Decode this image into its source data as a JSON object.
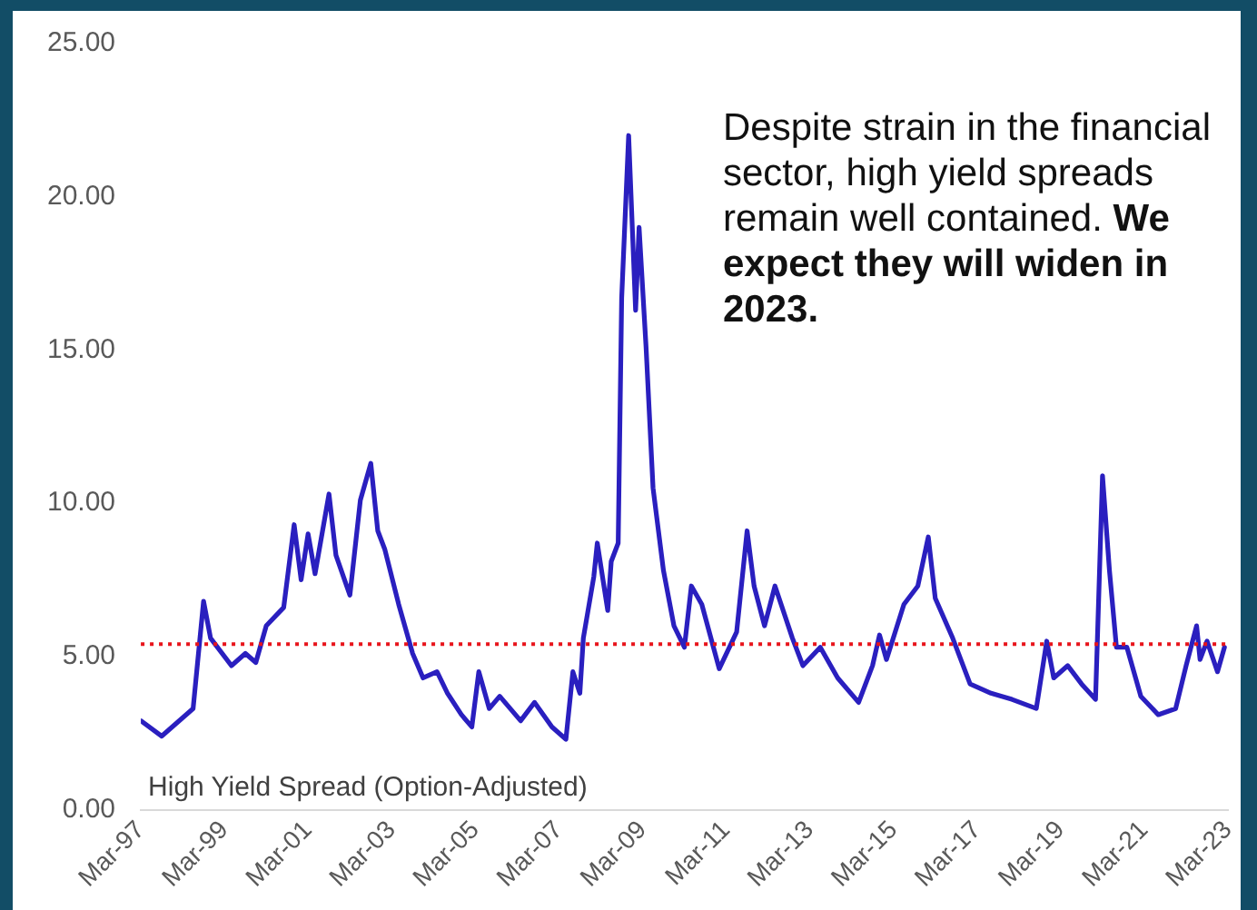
{
  "chart_data": {
    "type": "line",
    "annotations": [
      "Despite strain in the financial sector, high yield spreads remain well contained.",
      "We expect they will widen in 2023."
    ],
    "x": [
      "1997-03",
      "1997-09",
      "1998-06",
      "1998-09",
      "1998-11",
      "1999-05",
      "1999-09",
      "1999-12",
      "2000-03",
      "2000-08",
      "2000-11",
      "2001-01",
      "2001-03",
      "2001-05",
      "2001-09",
      "2001-11",
      "2002-03",
      "2002-06",
      "2002-09",
      "2002-11",
      "2003-01",
      "2003-05",
      "2003-09",
      "2003-12",
      "2004-04",
      "2004-07",
      "2004-11",
      "2005-02",
      "2005-04",
      "2005-07",
      "2005-10",
      "2006-04",
      "2006-08",
      "2007-01",
      "2007-05",
      "2007-07",
      "2007-09",
      "2007-10",
      "2008-01",
      "2008-02",
      "2008-05",
      "2008-06",
      "2008-08",
      "2008-09",
      "2008-11",
      "2009-01",
      "2009-02",
      "2009-04",
      "2009-06",
      "2009-09",
      "2009-12",
      "2010-03",
      "2010-05",
      "2010-08",
      "2011-01",
      "2011-06",
      "2011-09",
      "2011-11",
      "2012-02",
      "2012-05",
      "2012-10",
      "2013-01",
      "2013-06",
      "2013-11",
      "2014-05",
      "2014-09",
      "2014-11",
      "2015-01",
      "2015-06",
      "2015-10",
      "2016-01",
      "2016-03",
      "2016-08",
      "2017-01",
      "2017-07",
      "2018-01",
      "2018-08",
      "2018-11",
      "2019-01",
      "2019-05",
      "2019-09",
      "2020-01",
      "2020-03",
      "2020-05",
      "2020-07",
      "2020-10",
      "2021-02",
      "2021-07",
      "2021-12",
      "2022-03",
      "2022-06",
      "2022-07",
      "2022-09",
      "2022-12",
      "2023-02"
    ],
    "series": [
      {
        "name": "High Yield Spread (Option-Adjusted)",
        "color": "#2a1fbf",
        "values": [
          2.9,
          2.4,
          3.3,
          6.8,
          5.6,
          4.7,
          5.1,
          4.8,
          6.0,
          6.6,
          9.3,
          7.5,
          9.0,
          7.7,
          10.3,
          8.3,
          7.0,
          10.1,
          11.3,
          9.1,
          8.5,
          6.7,
          5.1,
          4.3,
          4.5,
          3.8,
          3.1,
          2.7,
          4.5,
          3.3,
          3.7,
          2.9,
          3.5,
          2.7,
          2.3,
          4.5,
          3.8,
          5.6,
          7.6,
          8.7,
          6.5,
          8.1,
          8.7,
          16.7,
          22.0,
          16.3,
          19.0,
          15.1,
          10.5,
          7.8,
          6.0,
          5.3,
          7.3,
          6.7,
          4.6,
          5.8,
          9.1,
          7.3,
          6.0,
          7.3,
          5.6,
          4.7,
          5.3,
          4.3,
          3.5,
          4.7,
          5.7,
          4.9,
          6.7,
          7.3,
          8.9,
          6.9,
          5.6,
          4.1,
          3.8,
          3.6,
          3.3,
          5.5,
          4.3,
          4.7,
          4.1,
          3.6,
          10.9,
          7.8,
          5.3,
          5.3,
          3.7,
          3.1,
          3.3,
          4.7,
          6.0,
          4.9,
          5.5,
          4.5,
          5.3
        ]
      }
    ],
    "xlim": [
      "1997-03",
      "2023-03"
    ],
    "xticks": [
      {
        "value": "1997-03",
        "label": "Mar-97"
      },
      {
        "value": "1999-03",
        "label": "Mar-99"
      },
      {
        "value": "2001-03",
        "label": "Mar-01"
      },
      {
        "value": "2003-03",
        "label": "Mar-03"
      },
      {
        "value": "2005-03",
        "label": "Mar-05"
      },
      {
        "value": "2007-03",
        "label": "Mar-07"
      },
      {
        "value": "2009-03",
        "label": "Mar-09"
      },
      {
        "value": "2011-03",
        "label": "Mar-11"
      },
      {
        "value": "2013-03",
        "label": "Mar-13"
      },
      {
        "value": "2015-03",
        "label": "Mar-15"
      },
      {
        "value": "2017-03",
        "label": "Mar-17"
      },
      {
        "value": "2019-03",
        "label": "Mar-19"
      },
      {
        "value": "2021-03",
        "label": "Mar-21"
      },
      {
        "value": "2023-03",
        "label": "Mar-23"
      }
    ],
    "ylim": [
      0,
      25
    ],
    "yticks": [
      {
        "value": 0,
        "label": "0.00"
      },
      {
        "value": 5,
        "label": "5.00"
      },
      {
        "value": 10,
        "label": "10.00"
      },
      {
        "value": 15,
        "label": "15.00"
      },
      {
        "value": 20,
        "label": "20.00"
      },
      {
        "value": 25,
        "label": "25.00"
      }
    ],
    "ref_lines": [
      {
        "axis": "y",
        "value": 5.4,
        "color": "#e8141b",
        "line_style": "dotted"
      }
    ],
    "legend": "bottom left",
    "marker": "none"
  }
}
